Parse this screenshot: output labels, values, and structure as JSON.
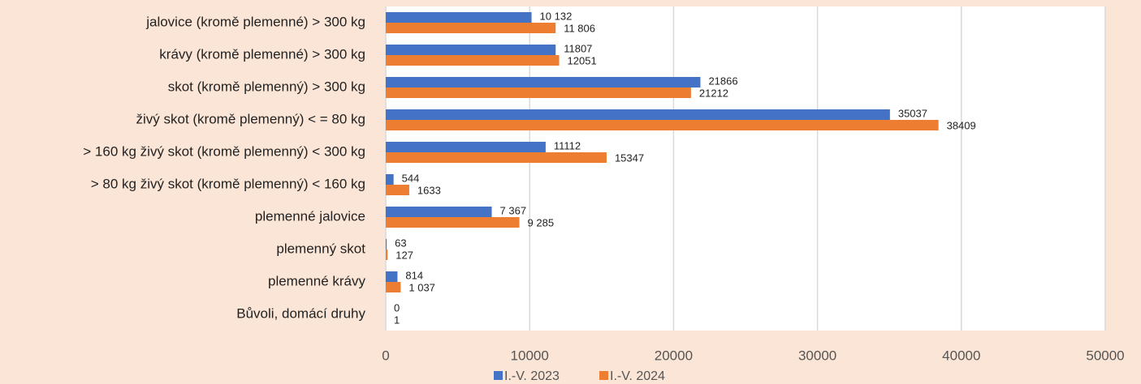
{
  "chart_data": {
    "type": "bar",
    "orientation": "horizontal",
    "categories": [
      "jalovice (kromě plemenné) > 300 kg",
      "krávy (kromě plemenné) > 300 kg",
      "skot (kromě plemenný) > 300 kg",
      "živý skot (kromě plemenný) < = 80 kg",
      "> 160 kg živý skot (kromě plemenný) < 300 kg",
      "> 80 kg živý skot (kromě plemenný) < 160 kg",
      "plemenné jalovice",
      "plemenný skot",
      "plemenné krávy",
      "Bůvoli, domácí druhy"
    ],
    "series": [
      {
        "name": "I.-V. 2023",
        "color": "#4472c4",
        "values": [
          10132,
          11807,
          21866,
          35037,
          11112,
          544,
          7367,
          63,
          814,
          0
        ],
        "value_labels": [
          "10 132",
          "11807",
          "21866",
          "35037",
          "11112",
          "544",
          "7 367",
          "63",
          "814",
          "0"
        ]
      },
      {
        "name": "I.-V. 2024",
        "color": "#ed7d31",
        "values": [
          11806,
          12051,
          21212,
          38409,
          15347,
          1633,
          9285,
          127,
          1037,
          1
        ],
        "value_labels": [
          "11 806",
          "12051",
          "21212",
          "38409",
          "15347",
          "1633",
          "9 285",
          "127",
          "1 037",
          "1"
        ]
      }
    ],
    "xlim": [
      0,
      50000
    ],
    "xticks": [
      0,
      10000,
      20000,
      30000,
      40000,
      50000
    ],
    "grid": true,
    "legend": "bottom"
  }
}
